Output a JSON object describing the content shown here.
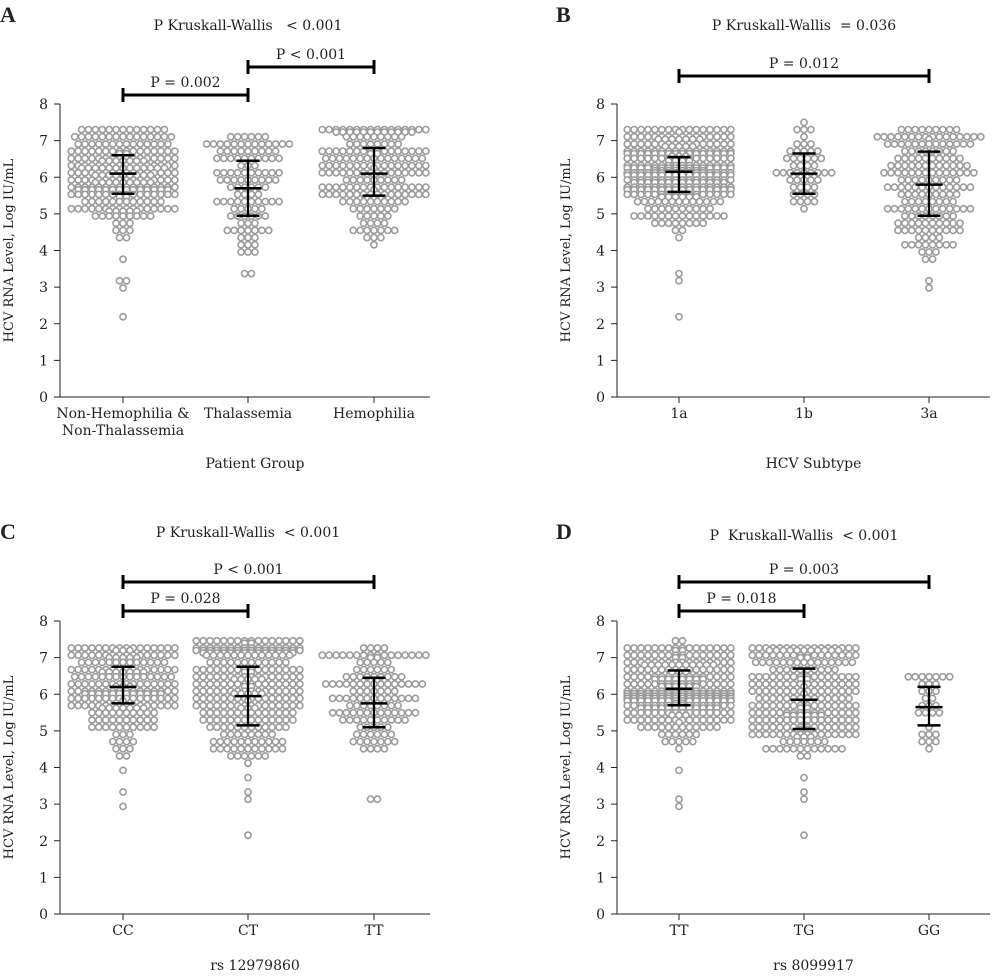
{
  "colors": {
    "points": "#9b9b9b",
    "axis": "#222222",
    "bars": "#000000",
    "text": "#222222"
  },
  "chart_data": [
    {
      "type": "scatter",
      "panel": "A",
      "title": "P Kruskall-Wallis   < 0.001",
      "xlabel": "Patient Group",
      "ylabel": "HCV RNA Level, Log IU/mL",
      "ylim": [
        0,
        8
      ],
      "yticks": [
        "0",
        "1",
        "2",
        "3",
        "4",
        "5",
        "6",
        "7",
        "8"
      ],
      "categories": [
        "Non-Hemophilia &\nNon-Thalassemia",
        "Thalassemia",
        "Hemophilia"
      ],
      "groups": [
        {
          "name": "Non-Hemophilia & Non-Thalassemia",
          "median": 6.1,
          "q1": 5.55,
          "q3": 6.6,
          "n": 260,
          "min": 4.2,
          "max": 7.3,
          "outliers": [
            2.1,
            3.0,
            3.2,
            3.2,
            3.7
          ]
        },
        {
          "name": "Thalassemia",
          "median": 5.7,
          "q1": 4.95,
          "q3": 6.45,
          "n": 110,
          "min": 3.9,
          "max": 7.1,
          "outliers": [
            3.4,
            3.4
          ]
        },
        {
          "name": "Hemophilia",
          "median": 6.1,
          "q1": 5.5,
          "q3": 6.8,
          "n": 190,
          "min": 4.4,
          "max": 7.4,
          "outliers": [
            4.2
          ]
        }
      ],
      "comparisons": [
        {
          "from": 0,
          "to": 1,
          "label": "P = 0.002",
          "level": 1
        },
        {
          "from": 1,
          "to": 2,
          "label": "P < 0.001",
          "level": 2
        }
      ]
    },
    {
      "type": "scatter",
      "panel": "B",
      "title": "P Kruskall-Wallis  = 0.036",
      "xlabel": "HCV Subtype",
      "ylabel": "HCV RNA Level, Log IU/mL",
      "ylim": [
        0,
        8
      ],
      "yticks": [
        "0",
        "1",
        "2",
        "3",
        "4",
        "5",
        "6",
        "7",
        "8"
      ],
      "categories": [
        "1a",
        "1b",
        "3a"
      ],
      "groups": [
        {
          "name": "1a",
          "median": 6.15,
          "q1": 5.6,
          "q3": 6.55,
          "n": 320,
          "min": 4.2,
          "max": 7.3,
          "outliers": [
            2.1,
            3.2,
            3.4
          ]
        },
        {
          "name": "1b",
          "median": 6.1,
          "q1": 5.55,
          "q3": 6.65,
          "n": 50,
          "min": 5.0,
          "max": 7.4,
          "outliers": []
        },
        {
          "name": "3a",
          "median": 5.8,
          "q1": 4.95,
          "q3": 6.7,
          "n": 180,
          "min": 3.7,
          "max": 7.3,
          "outliers": [
            3.0,
            3.2
          ]
        }
      ],
      "comparisons": [
        {
          "from": 0,
          "to": 2,
          "label": "P = 0.012",
          "level": 1
        }
      ]
    },
    {
      "type": "scatter",
      "panel": "C",
      "title": "P Kruskall-Wallis  < 0.001",
      "xlabel": "rs 12979860",
      "ylabel": "HCV RNA Level, Log IU/mL",
      "ylim": [
        0,
        8
      ],
      "yticks": [
        "0",
        "1",
        "2",
        "3",
        "4",
        "5",
        "6",
        "7",
        "8"
      ],
      "categories": [
        "CC",
        "CT",
        "TT"
      ],
      "groups": [
        {
          "name": "CC",
          "median": 6.2,
          "q1": 5.75,
          "q3": 6.75,
          "n": 220,
          "min": 4.3,
          "max": 7.3,
          "outliers": [
            3.0,
            3.4,
            3.9
          ]
        },
        {
          "name": "CT",
          "median": 5.95,
          "q1": 5.15,
          "q3": 6.75,
          "n": 280,
          "min": 4.2,
          "max": 7.4,
          "outliers": [
            2.1,
            3.2,
            3.4,
            3.7
          ]
        },
        {
          "name": "TT",
          "median": 5.75,
          "q1": 5.1,
          "q3": 6.45,
          "n": 130,
          "min": 4.5,
          "max": 7.2,
          "outliers": [
            3.2,
            3.2
          ]
        }
      ],
      "comparisons": [
        {
          "from": 0,
          "to": 1,
          "label": "P = 0.028",
          "level": 1
        },
        {
          "from": 0,
          "to": 2,
          "label": "P < 0.001",
          "level": 2
        }
      ]
    },
    {
      "type": "scatter",
      "panel": "D",
      "title": "P  Kruskall-Wallis  < 0.001",
      "xlabel": "rs 8099917",
      "ylabel": "HCV RNA Level, Log IU/mL",
      "ylim": [
        0,
        8
      ],
      "yticks": [
        "0",
        "1",
        "2",
        "3",
        "4",
        "5",
        "6",
        "7",
        "8"
      ],
      "categories": [
        "TT",
        "TG",
        "GG"
      ],
      "groups": [
        {
          "name": "TT",
          "median": 6.15,
          "q1": 5.7,
          "q3": 6.65,
          "n": 300,
          "min": 4.2,
          "max": 7.4,
          "outliers": [
            3.0,
            3.2,
            3.9
          ]
        },
        {
          "name": "TG",
          "median": 5.85,
          "q1": 5.05,
          "q3": 6.7,
          "n": 250,
          "min": 4.4,
          "max": 7.3,
          "outliers": [
            2.1,
            3.2,
            3.4,
            3.7
          ]
        },
        {
          "name": "GG",
          "median": 5.65,
          "q1": 5.15,
          "q3": 6.2,
          "n": 30,
          "min": 4.5,
          "max": 6.5,
          "outliers": []
        }
      ],
      "comparisons": [
        {
          "from": 0,
          "to": 1,
          "label": "P = 0.018",
          "level": 1
        },
        {
          "from": 0,
          "to": 2,
          "label": "P = 0.003",
          "level": 2
        }
      ]
    }
  ]
}
